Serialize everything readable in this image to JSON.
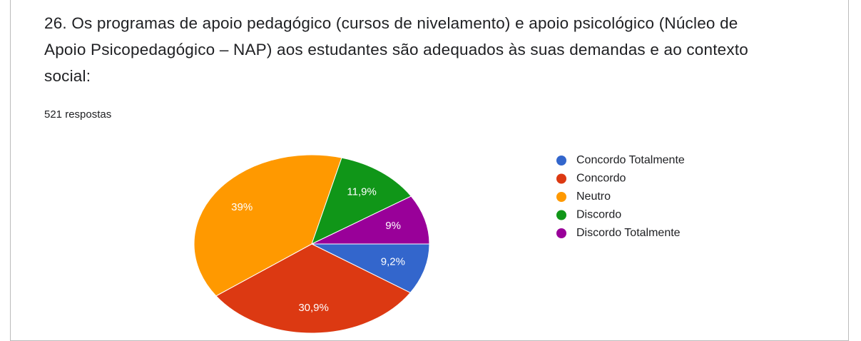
{
  "chart_data": {
    "type": "pie",
    "title": "26. Os programas de apoio pedagógico (cursos de nivelamento) e apoio psicológico (Núcleo de Apoio Psicopedagógico – NAP) aos estudantes são adequados às suas demandas e ao contexto social:",
    "subtitle": "521 respostas",
    "categories": [
      "Concordo Totalmente",
      "Concordo",
      "Neutro",
      "Discordo",
      "Discordo Totalmente"
    ],
    "values": [
      9.2,
      30.9,
      39,
      11.9,
      9
    ],
    "value_labels": [
      "9,2%",
      "30,9%",
      "39%",
      "11,9%",
      "9%"
    ],
    "colors": [
      "#3366cc",
      "#dc3912",
      "#ff9900",
      "#109618",
      "#990099"
    ],
    "legend": "right"
  }
}
